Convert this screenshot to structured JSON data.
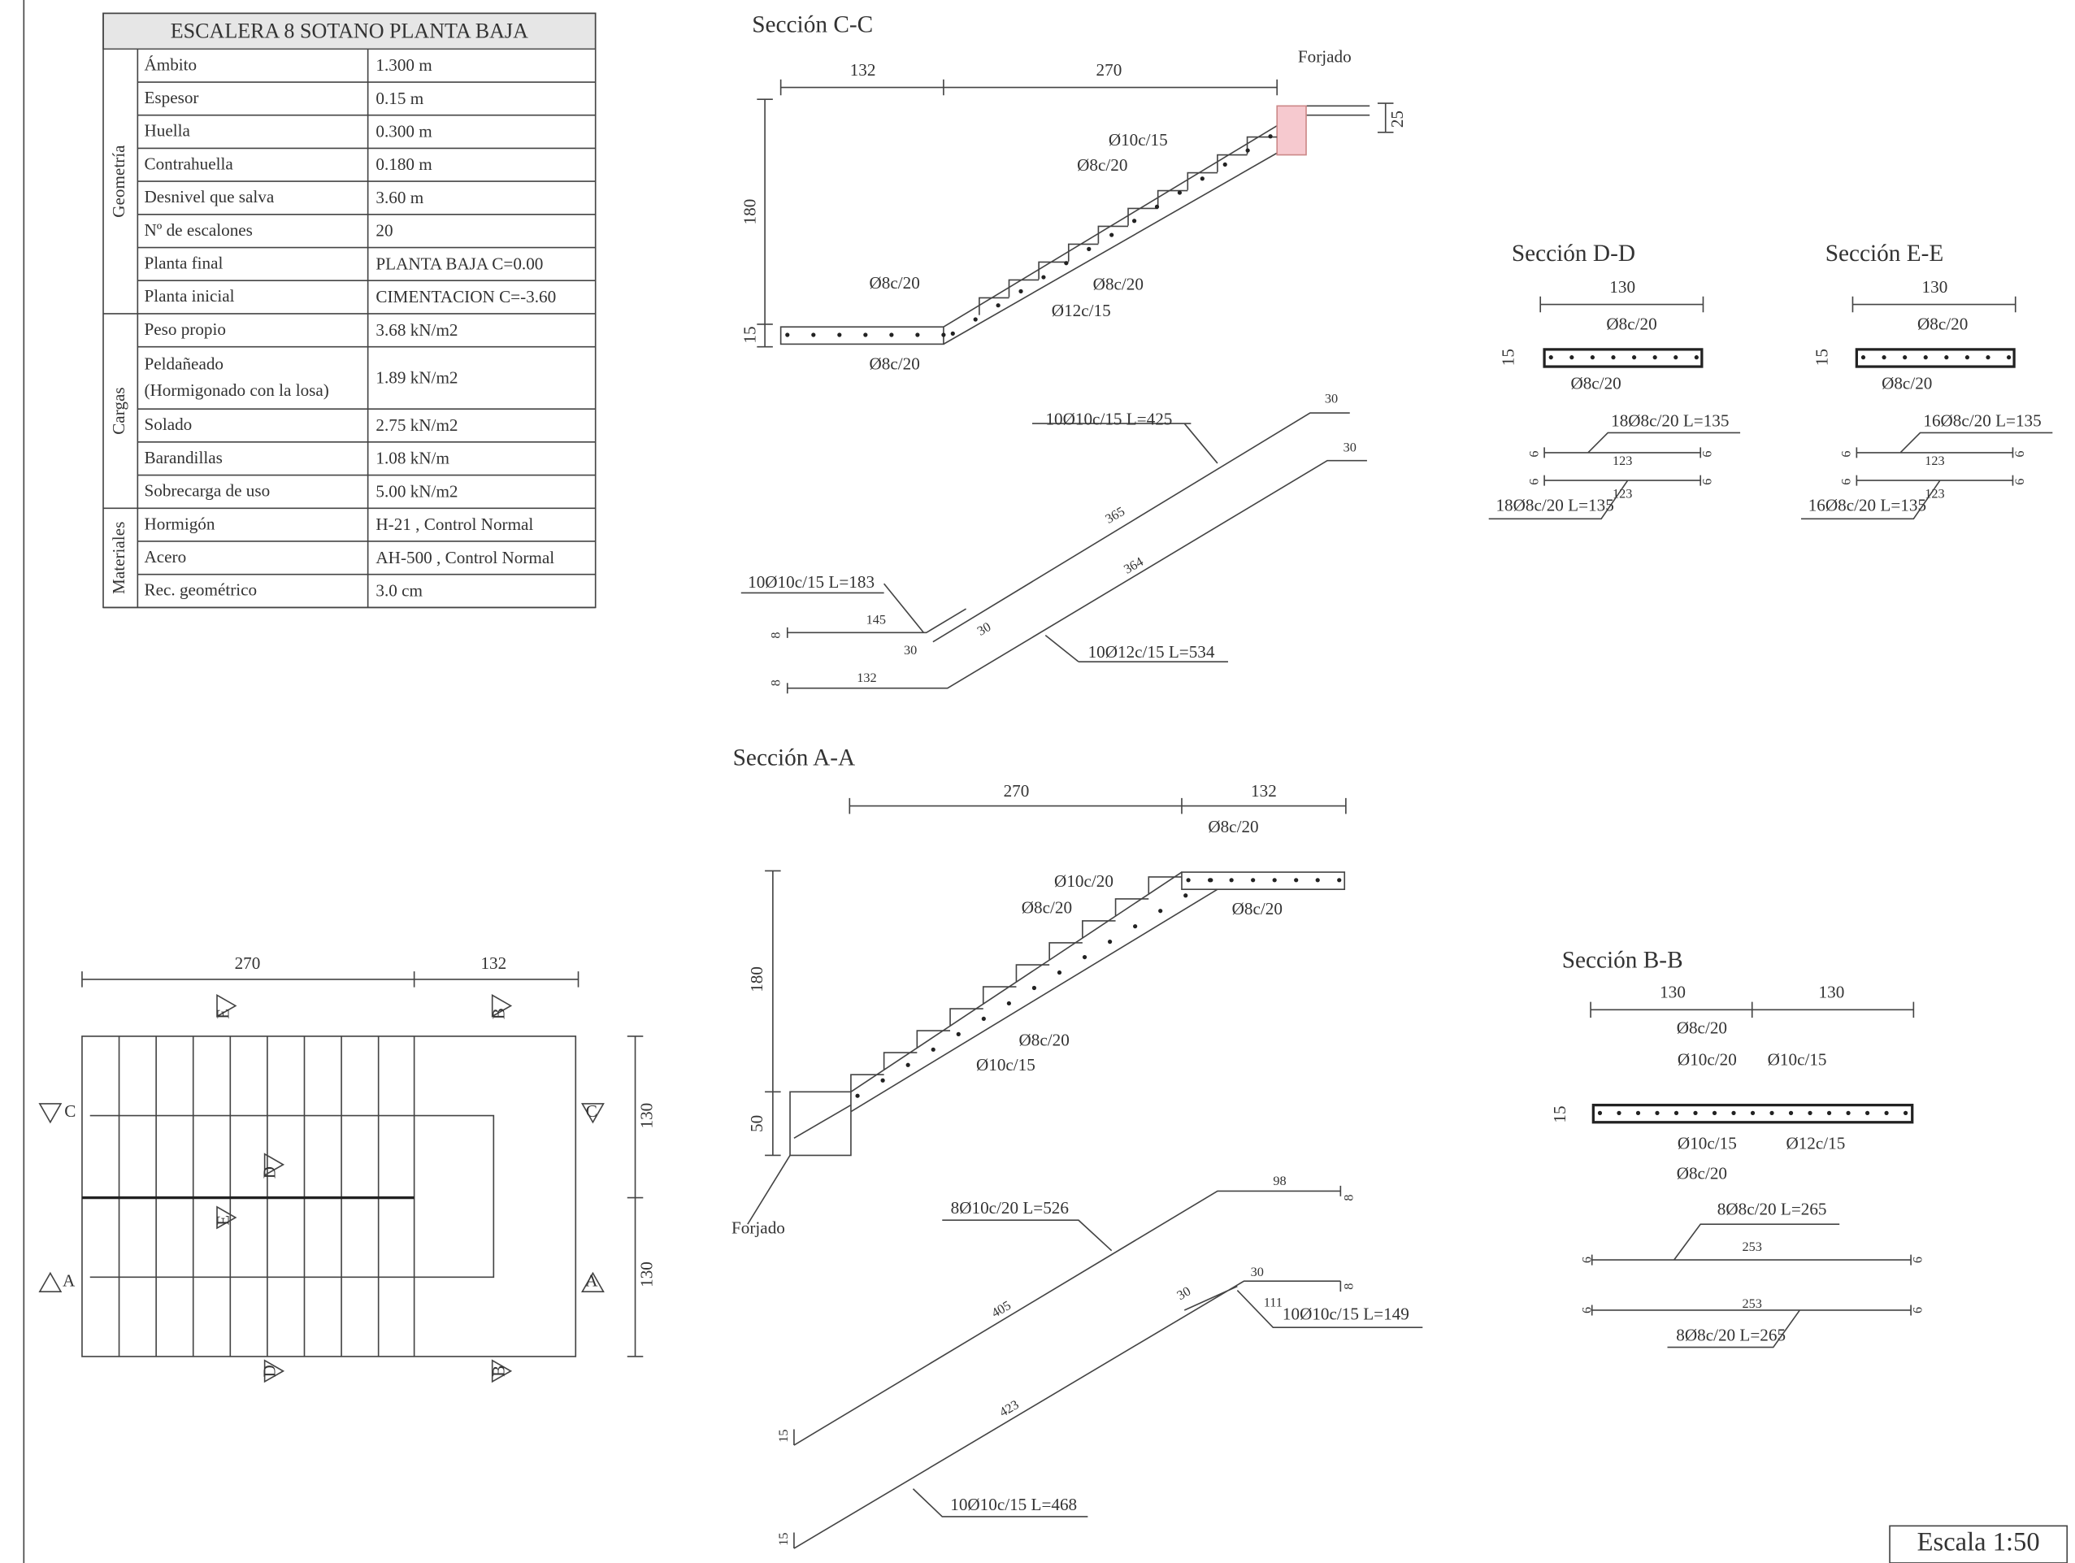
{
  "table": {
    "title": "ESCALERA 8 SOTANO PLANTA BAJA",
    "groups": [
      {
        "name": "Geometría",
        "rows": [
          {
            "label": "Ámbito",
            "value": "1.300 m"
          },
          {
            "label": "Espesor",
            "value": "0.15 m"
          },
          {
            "label": "Huella",
            "value": "0.300 m"
          },
          {
            "label": "Contrahuella",
            "value": "0.180 m"
          },
          {
            "label": "Desnivel que salva",
            "value": "3.60 m"
          },
          {
            "label": "Nº de escalones",
            "value": "20"
          },
          {
            "label": "Planta final",
            "value": "PLANTA BAJA C=0.00"
          },
          {
            "label": "Planta inicial",
            "value": "CIMENTACION C=-3.60"
          }
        ]
      },
      {
        "name": "Cargas",
        "rows": [
          {
            "label": "Peso propio",
            "value": "3.68 kN/m2"
          },
          {
            "label": [
              "Peldañeado",
              "(Hormigonado con la losa)"
            ],
            "value": "1.89 kN/m2"
          },
          {
            "label": "Solado",
            "value": "2.75 kN/m2"
          },
          {
            "label": "Barandillas",
            "value": "1.08 kN/m"
          },
          {
            "label": "Sobrecarga de uso",
            "value": "5.00 kN/m2"
          }
        ]
      },
      {
        "name": "Materiales",
        "rows": [
          {
            "label": "Hormigón",
            "value": "H-21 , Control Normal"
          },
          {
            "label": "Acero",
            "value": "AH-500 , Control Normal"
          },
          {
            "label": "Rec. geométrico",
            "value": "3.0 cm"
          }
        ]
      }
    ]
  },
  "sections": [
    {
      "title": "Sección C-C",
      "labels": [
        "132",
        "270",
        "Forjado",
        "25",
        "180",
        "15",
        "Ø10c/15",
        "Ø8c/20",
        "Ø8c/20",
        "Ø8c/20",
        "Ø12c/15",
        "Ø8c/20",
        "10Ø10c/15 L=425",
        "30",
        "30",
        "365",
        "364",
        "10Ø10c/15 L=183",
        "145",
        "30",
        "30",
        "8",
        "10Ø12c/15 L=534",
        "8",
        "132"
      ]
    },
    {
      "title": "Sección D-D",
      "labels": [
        "130",
        "15",
        "Ø8c/20",
        "Ø8c/20",
        "18Ø8c/20 L=135",
        "6",
        "123",
        "6",
        "6",
        "123",
        "6",
        "18Ø8c/20 L=135"
      ]
    },
    {
      "title": "Sección E-E",
      "labels": [
        "130",
        "15",
        "Ø8c/20",
        "Ø8c/20",
        "16Ø8c/20 L=135",
        "6",
        "123",
        "6",
        "6",
        "123",
        "6",
        "16Ø8c/20 L=135"
      ]
    },
    {
      "title": "Sección A-A",
      "labels": [
        "270",
        "132",
        "Ø8c/20",
        "Ø10c/20",
        "Ø8c/20",
        "Ø8c/20",
        "180",
        "Ø8c/20",
        "Ø10c/15",
        "50",
        "Forjado",
        "98",
        "8",
        "8Ø10c/20 L=526",
        "30",
        "30",
        "8",
        "111",
        "10Ø10c/15 L=149",
        "405",
        "423",
        "15",
        "10Ø10c/15 L=468",
        "15"
      ]
    },
    {
      "title": "Sección B-B",
      "labels": [
        "130",
        "130",
        "Ø8c/20",
        "Ø10c/20",
        "Ø10c/15",
        "15",
        "Ø10c/15",
        "Ø12c/15",
        "Ø8c/20",
        "8Ø8c/20 L=265",
        "6",
        "253",
        "6",
        "6",
        "253",
        "6",
        "8Ø8c/20 L=265"
      ]
    }
  ],
  "plan": {
    "labels": [
      "270",
      "132",
      "130",
      "130",
      "E",
      "B",
      "C",
      "C",
      "D",
      "E",
      "A",
      "A",
      "D",
      "B"
    ]
  },
  "scale": "Escala 1:50"
}
